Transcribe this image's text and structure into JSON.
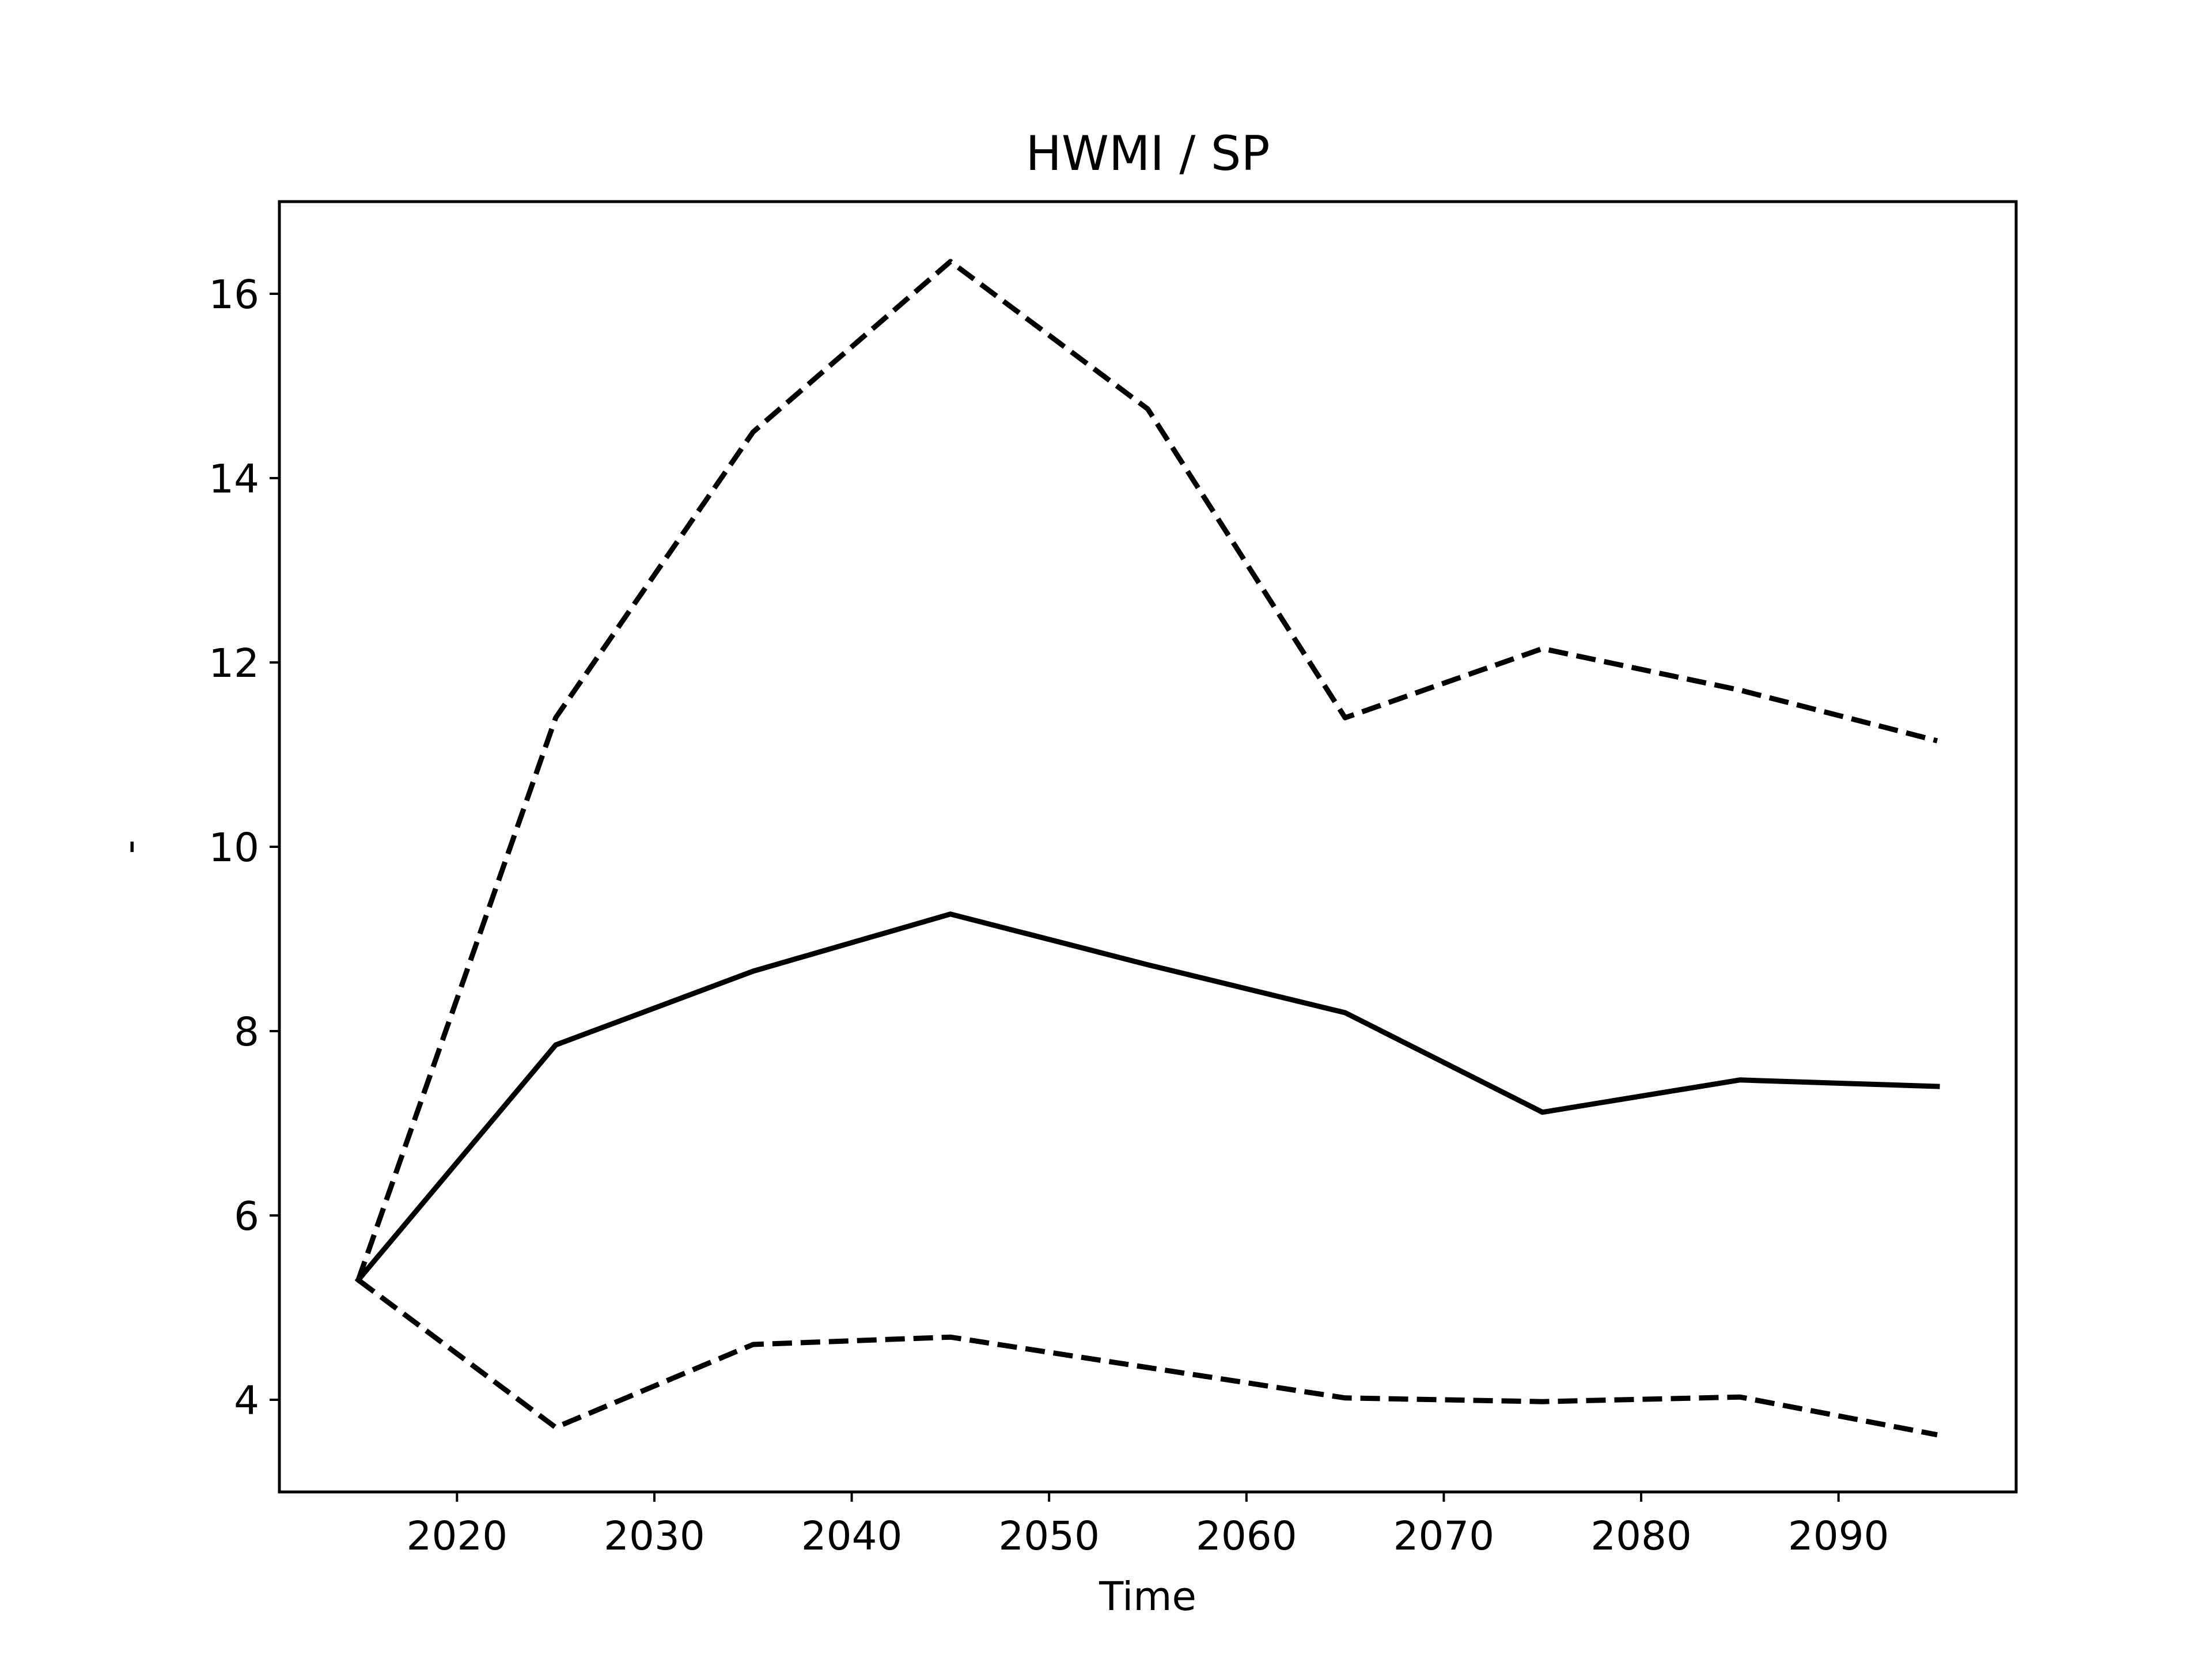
{
  "chart_data": {
    "type": "line",
    "title": "HWMI / SP",
    "xlabel": "Time",
    "ylabel": "-",
    "xlim": [
      2011,
      2099
    ],
    "ylim": [
      3,
      17
    ],
    "xticks": [
      2020,
      2030,
      2040,
      2050,
      2060,
      2070,
      2080,
      2090
    ],
    "yticks": [
      4,
      6,
      8,
      10,
      12,
      14,
      16
    ],
    "grid": false,
    "legend": "none",
    "x": [
      2015,
      2025,
      2035,
      2045,
      2055,
      2065,
      2075,
      2085,
      2095
    ],
    "series": [
      {
        "style": "dashed",
        "color": "#000000",
        "values": [
          5.3,
          11.4,
          14.5,
          16.35,
          14.75,
          11.4,
          12.15,
          11.7,
          11.15
        ]
      },
      {
        "style": "solid",
        "color": "#000000",
        "values": [
          5.3,
          7.85,
          8.65,
          9.27,
          8.72,
          8.2,
          7.12,
          7.47,
          7.4
        ]
      },
      {
        "style": "dashed",
        "color": "#000000",
        "values": [
          5.3,
          3.7,
          4.6,
          4.68,
          4.35,
          4.02,
          3.98,
          4.03,
          3.62
        ]
      }
    ]
  }
}
